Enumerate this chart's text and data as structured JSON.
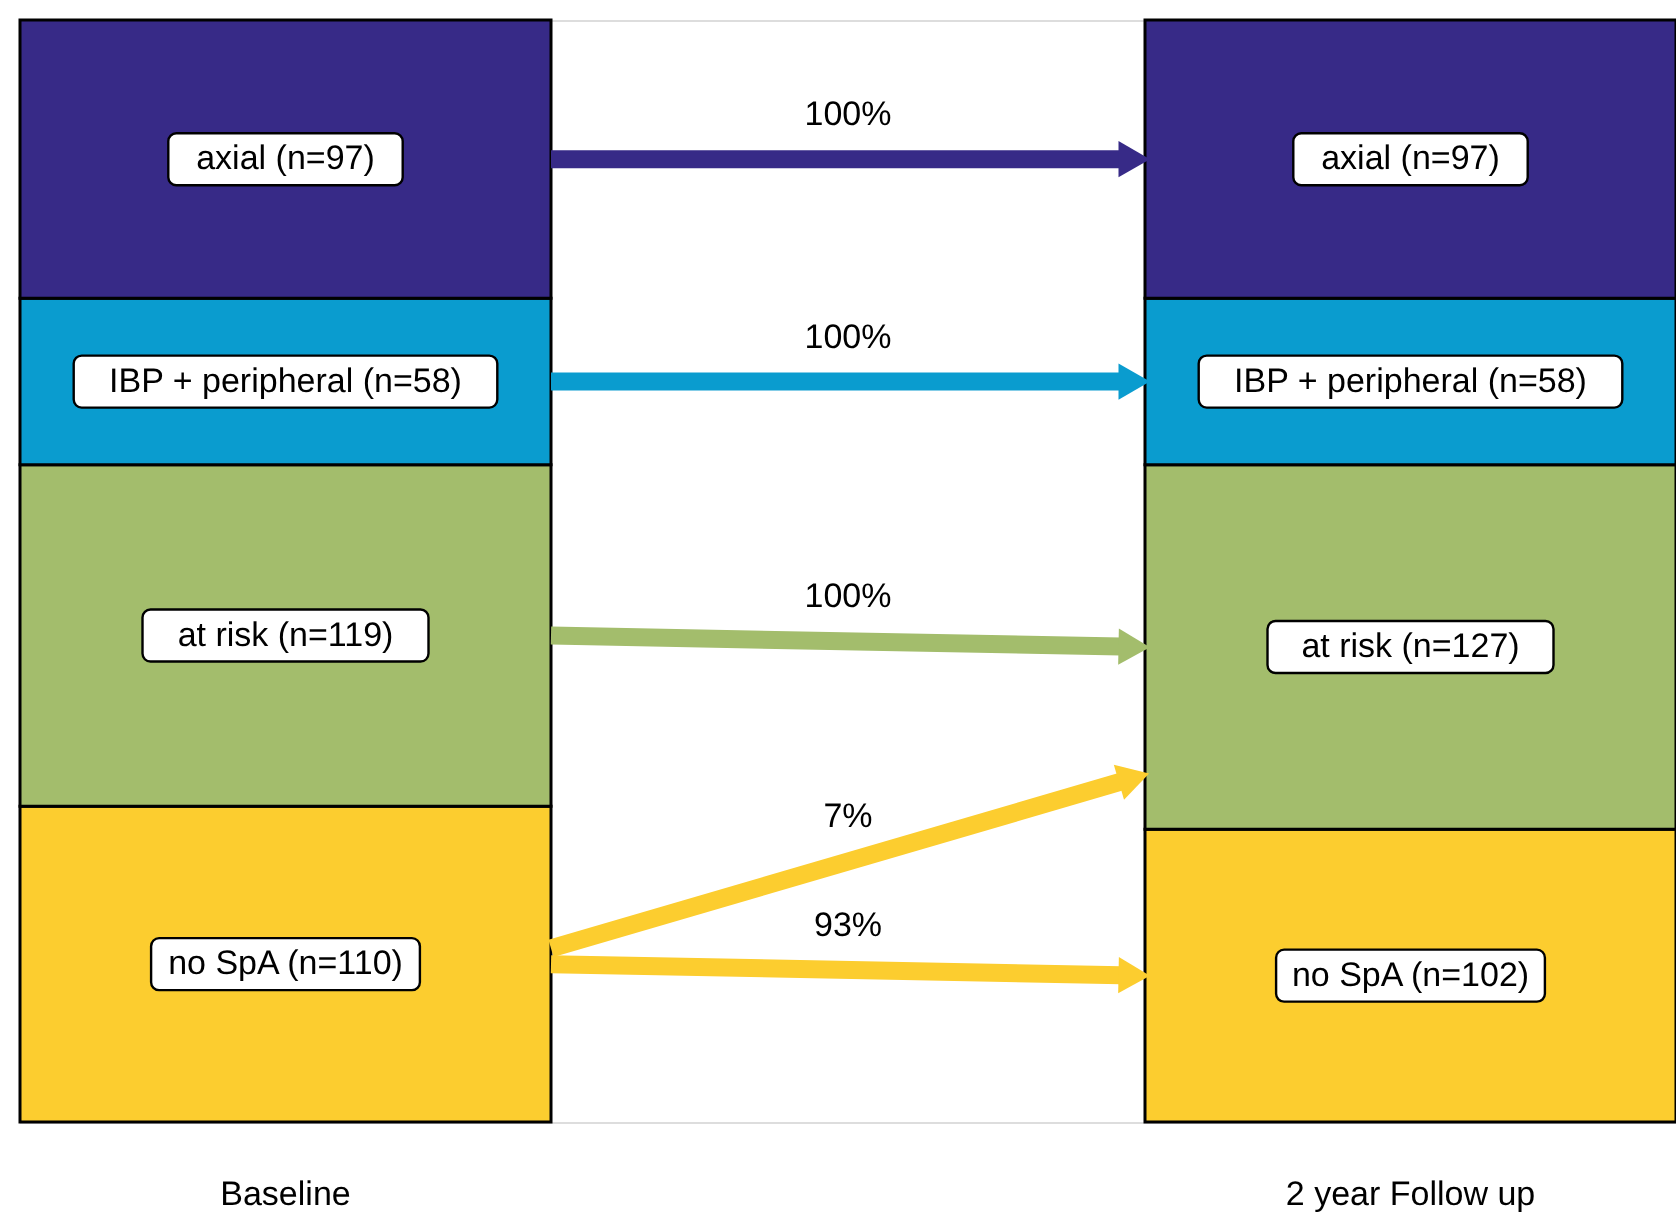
{
  "chart_data": {
    "type": "bar",
    "stacked": true,
    "categories": [
      "Baseline",
      "2 year Follow up"
    ],
    "series": [
      {
        "color": "#fccd2f",
        "values": [
          110,
          102
        ],
        "value_labels": [
          "no SpA (n=110)",
          "no SpA (n=102)"
        ]
      },
      {
        "color": "#a3bd6c",
        "values": [
          119,
          127
        ],
        "value_labels": [
          "at risk (n=119)",
          "at risk (n=127)"
        ]
      },
      {
        "color": "#0a9ccf",
        "values": [
          58,
          58
        ],
        "value_labels": [
          "IBP + peripheral (n=58)",
          "IBP + peripheral (n=58)"
        ]
      },
      {
        "color": "#372a87",
        "values": [
          97,
          97
        ],
        "value_labels": [
          "axial (n=97)",
          "axial (n=97)"
        ]
      }
    ],
    "annotations": [
      "100%",
      "100%",
      "100%",
      "7%",
      "93%"
    ],
    "grid": false,
    "tick_labels": "x"
  }
}
